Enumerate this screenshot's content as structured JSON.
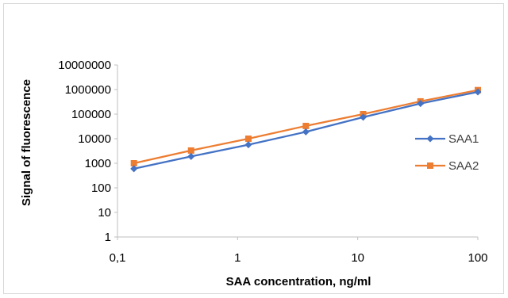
{
  "chart_data": {
    "type": "line",
    "title": "",
    "xlabel": "SAA concentration, ng/ml",
    "ylabel": "Signal of fluorescence",
    "x_scale": "log",
    "y_scale": "log",
    "xlim": [
      0.1,
      100
    ],
    "ylim": [
      1,
      10000000
    ],
    "x_ticks": [
      0.1,
      1,
      10,
      100
    ],
    "x_tick_labels": [
      "0,1",
      "1",
      "10",
      "100"
    ],
    "y_ticks": [
      1,
      10,
      100,
      1000,
      10000,
      100000,
      1000000,
      10000000
    ],
    "y_tick_labels": [
      "1",
      "10",
      "100",
      "1000",
      "10000",
      "100000",
      "1000000",
      "10000000"
    ],
    "grid": false,
    "legend_position": "right",
    "series": [
      {
        "name": "SAA1",
        "color": "#4472C4",
        "marker": "diamond",
        "x": [
          0.137,
          0.41,
          1.23,
          3.7,
          11.1,
          33.3,
          100
        ],
        "y": [
          600,
          1900,
          5700,
          19000,
          75000,
          270000,
          800000
        ]
      },
      {
        "name": "SAA2",
        "color": "#ED7D31",
        "marker": "square",
        "x": [
          0.137,
          0.41,
          1.23,
          3.7,
          11.1,
          33.3,
          100
        ],
        "y": [
          1000,
          3300,
          10000,
          33000,
          100000,
          330000,
          950000
        ]
      }
    ]
  }
}
